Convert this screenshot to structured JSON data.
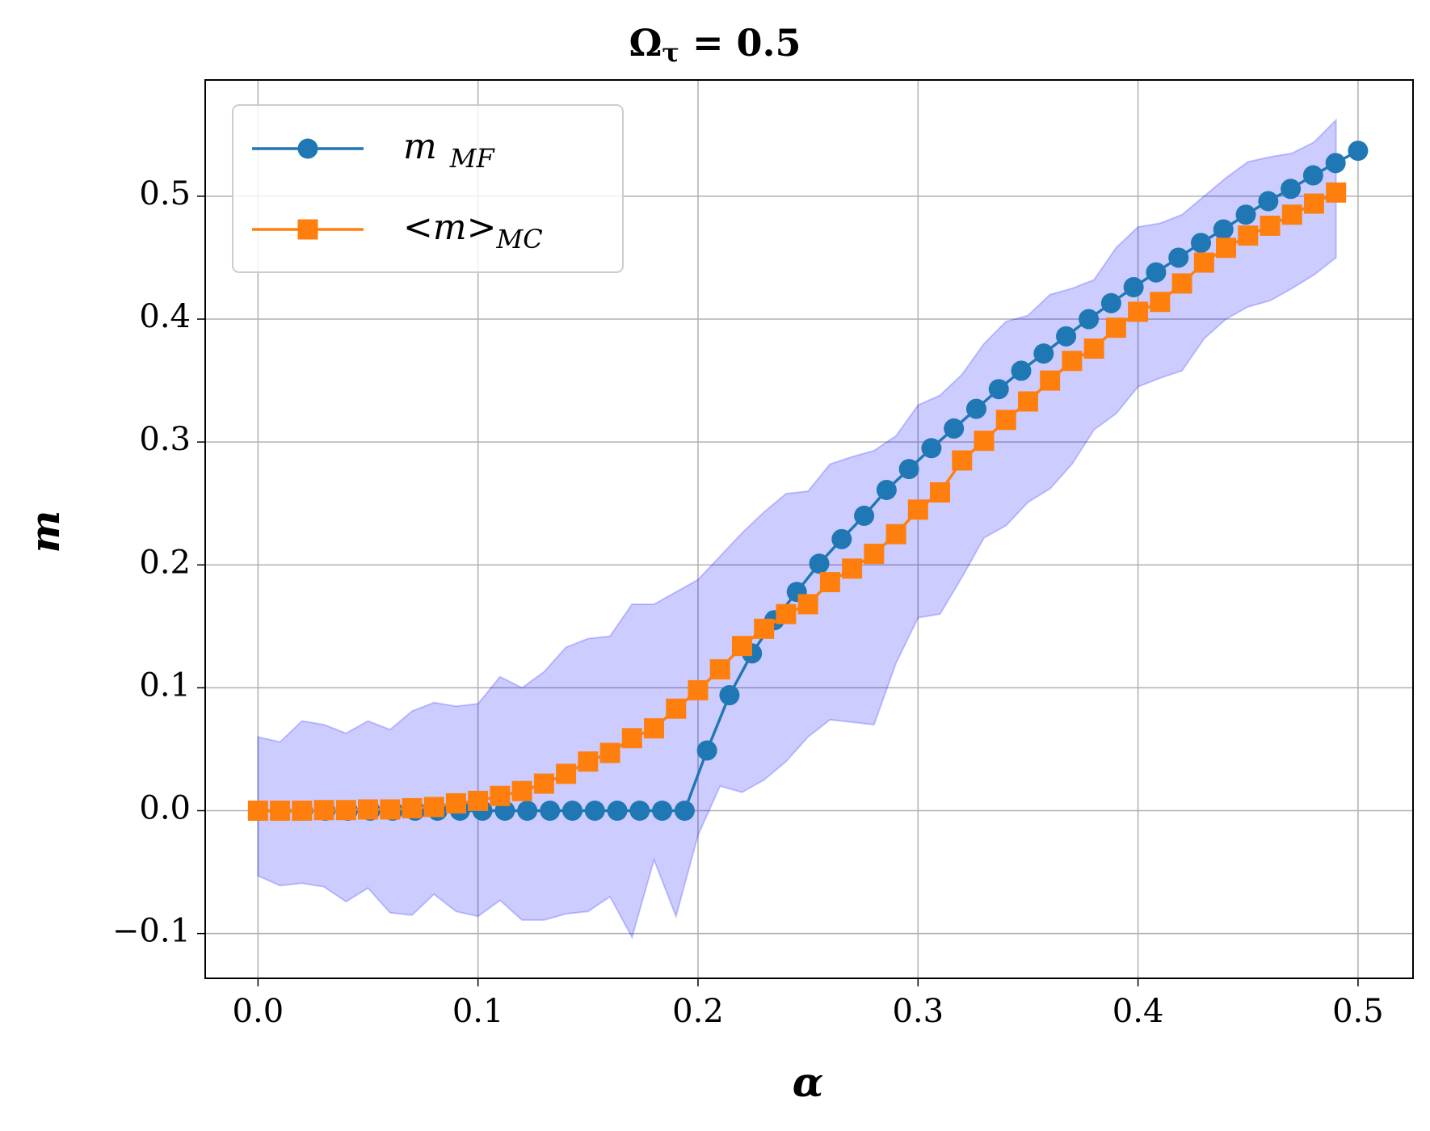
{
  "chart_data": {
    "type": "line",
    "title": "Ω",
    "title_sub": "τ",
    "title_rest": " = 0.5",
    "x_label": "α",
    "y_label": "m",
    "xlim": [
      -0.024,
      0.525
    ],
    "ylim": [
      -0.1364,
      0.5946
    ],
    "xticks": [
      {
        "value": 0,
        "label": "0.0"
      },
      0.1,
      0.2,
      0.3,
      0.4,
      0.5
    ],
    "yticks": [
      {
        "value": -0.1,
        "label": "−0.1"
      },
      {
        "value": 0,
        "label": "0.0"
      },
      0.1,
      0.2,
      0.3,
      0.4,
      0.5
    ],
    "grid": true,
    "legend": "upper left",
    "series": [
      {
        "name": "m",
        "subscript": "MF",
        "color": "#1f77b4",
        "marker": "circle",
        "x": [
          0,
          0.0102,
          0.0204,
          0.0306,
          0.0408,
          0.051,
          0.0612,
          0.0714,
          0.0816,
          0.0918,
          0.102,
          0.1122,
          0.1224,
          0.1327,
          0.1429,
          0.1531,
          0.1633,
          0.1735,
          0.1837,
          0.1939,
          0.2041,
          0.2143,
          0.2245,
          0.2347,
          0.2449,
          0.2551,
          0.2653,
          0.2755,
          0.2857,
          0.2959,
          0.3061,
          0.3163,
          0.3265,
          0.3367,
          0.3469,
          0.3571,
          0.3673,
          0.3776,
          0.3878,
          0.398,
          0.4082,
          0.4184,
          0.4286,
          0.4388,
          0.449,
          0.4592,
          0.4694,
          0.4796,
          0.4898,
          0.5
        ],
        "values": [
          0,
          0,
          0,
          0,
          0,
          0,
          0,
          0,
          0,
          0,
          0,
          0,
          0,
          0,
          0,
          0,
          0,
          0,
          0,
          0,
          0.049,
          0.094,
          0.128,
          0.155,
          0.178,
          0.201,
          0.221,
          0.24,
          0.261,
          0.278,
          0.295,
          0.311,
          0.327,
          0.343,
          0.358,
          0.372,
          0.386,
          0.4,
          0.413,
          0.426,
          0.438,
          0.45,
          0.462,
          0.473,
          0.485,
          0.496,
          0.506,
          0.517,
          0.527,
          0.537
        ]
      },
      {
        "name": "<m>",
        "subscript": "MC",
        "color": "#ff7f0e",
        "marker": "square",
        "band_color": "#0000ff",
        "x": [
          0,
          0.01,
          0.02,
          0.03,
          0.04,
          0.05,
          0.06,
          0.07,
          0.08,
          0.09,
          0.1,
          0.11,
          0.12,
          0.13,
          0.14,
          0.15,
          0.16,
          0.17,
          0.18,
          0.19,
          0.2,
          0.21,
          0.22,
          0.23,
          0.24,
          0.25,
          0.26,
          0.27,
          0.28,
          0.29,
          0.3,
          0.31,
          0.32,
          0.33,
          0.34,
          0.35,
          0.36,
          0.37,
          0.38,
          0.39,
          0.4,
          0.41,
          0.42,
          0.43,
          0.44,
          0.45,
          0.46,
          0.47,
          0.48,
          0.49
        ],
        "values": [
          0,
          0,
          0,
          0.0005,
          0.0005,
          0.001,
          0.001,
          0.002,
          0.003,
          0.006,
          0.008,
          0.012,
          0.016,
          0.022,
          0.03,
          0.04,
          0.047,
          0.059,
          0.067,
          0.083,
          0.098,
          0.115,
          0.134,
          0.148,
          0.16,
          0.168,
          0.186,
          0.197,
          0.209,
          0.225,
          0.245,
          0.259,
          0.285,
          0.301,
          0.318,
          0.333,
          0.35,
          0.366,
          0.376,
          0.393,
          0.406,
          0.414,
          0.429,
          0.446,
          0.458,
          0.468,
          0.476,
          0.485,
          0.494,
          0.503
        ],
        "band_upper": [
          0.06,
          0.056,
          0.073,
          0.07,
          0.063,
          0.073,
          0.066,
          0.081,
          0.088,
          0.085,
          0.087,
          0.109,
          0.1,
          0.113,
          0.133,
          0.14,
          0.142,
          0.168,
          0.168,
          0.178,
          0.188,
          0.207,
          0.226,
          0.243,
          0.258,
          0.26,
          0.282,
          0.288,
          0.293,
          0.305,
          0.33,
          0.338,
          0.355,
          0.38,
          0.398,
          0.403,
          0.42,
          0.425,
          0.432,
          0.458,
          0.475,
          0.478,
          0.485,
          0.5,
          0.515,
          0.528,
          0.532,
          0.535,
          0.544,
          0.562
        ],
        "band_lower": [
          -0.053,
          -0.061,
          -0.059,
          -0.062,
          -0.074,
          -0.063,
          -0.083,
          -0.085,
          -0.068,
          -0.082,
          -0.086,
          -0.073,
          -0.089,
          -0.089,
          -0.084,
          -0.082,
          -0.07,
          -0.103,
          -0.04,
          -0.086,
          -0.02,
          0.02,
          0.015,
          0.025,
          0.04,
          0.06,
          0.074,
          0.072,
          0.07,
          0.12,
          0.157,
          0.16,
          0.19,
          0.222,
          0.232,
          0.251,
          0.262,
          0.282,
          0.31,
          0.323,
          0.345,
          0.352,
          0.358,
          0.384,
          0.4,
          0.41,
          0.415,
          0.425,
          0.436,
          0.45
        ]
      }
    ]
  }
}
